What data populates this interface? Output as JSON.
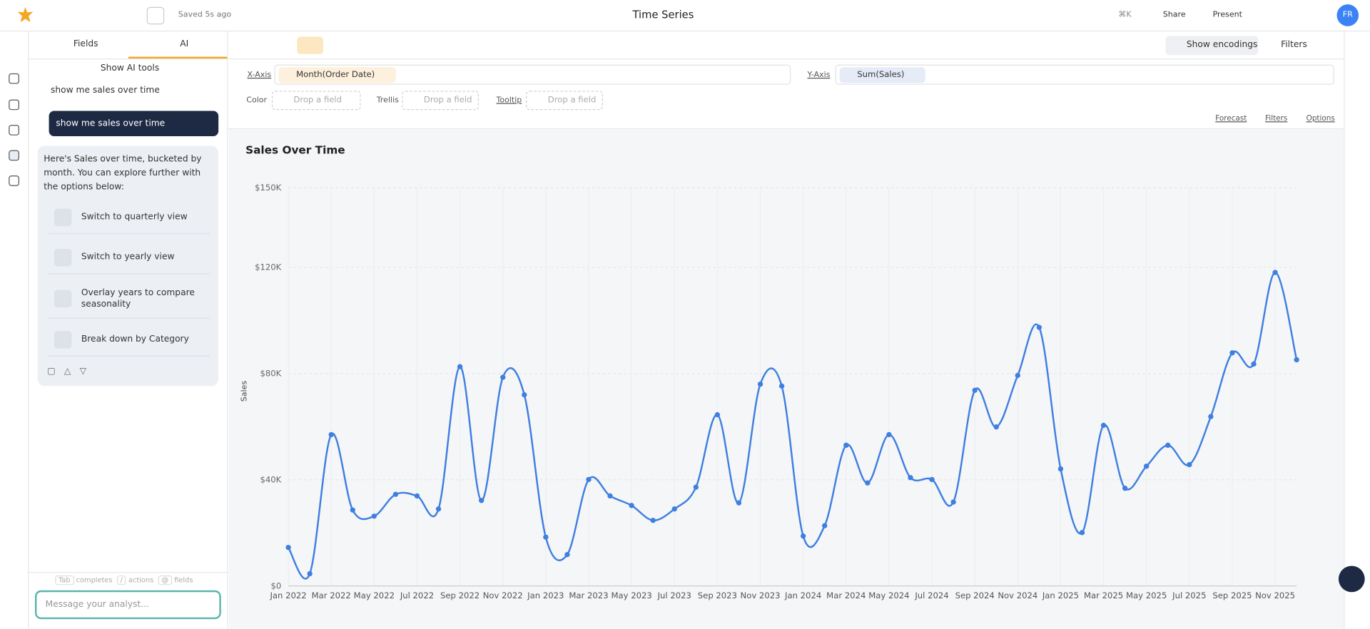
{
  "header": {
    "saved": "Saved 5s ago",
    "title": "Time Series",
    "shortcut": "⌘K",
    "share": "Share",
    "present": "Present",
    "avatar": "FR"
  },
  "sidebar": {
    "tabs": [
      "Fields",
      "AI"
    ],
    "ai_tools": "Show AI tools",
    "conversation": "show me sales over time"
  },
  "chat": {
    "user_message": "show me sales over time",
    "reply": "Here's Sales over time, bucketed by month. You can explore further with the options below:",
    "suggestions": [
      "Switch to quarterly view",
      "Switch to yearly view",
      "Overlay years to compare seasonality",
      "Break down by Category"
    ],
    "hints": [
      "Tab",
      "completes",
      "/",
      "actions",
      "@",
      "fields"
    ],
    "input_placeholder": "Message your analyst..."
  },
  "toolbar": {
    "show_encodings": "Show encodings",
    "filters": "Filters"
  },
  "encodings": {
    "x_axis": "X-Axis",
    "x_field": "Month(Order Date)",
    "y_axis": "Y-Axis",
    "y_field": "Sum(Sales)",
    "color": "Color",
    "trellis": "Trellis",
    "tooltip": "Tooltip",
    "drop": "Drop a field",
    "chart_options": [
      "Forecast",
      "Filters",
      "Options"
    ]
  },
  "chart_data": {
    "type": "line",
    "title": "Sales Over Time",
    "y_label": "Sales",
    "color": "#3f7fe0",
    "grid": true,
    "categories": [
      "Jan 2022",
      null,
      "Mar 2022",
      null,
      "May 2022",
      null,
      "Jul 2022",
      null,
      "Sep 2022",
      null,
      "Nov 2022",
      null,
      "Jan 2023",
      null,
      "Mar 2023",
      null,
      "May 2023",
      null,
      "Jul 2023",
      null,
      "Sep 2023",
      null,
      "Nov 2023",
      null,
      "Jan 2024",
      null,
      "Mar 2024",
      null,
      "May 2024",
      null,
      "Jul 2024",
      null,
      "Sep 2024",
      null,
      "Nov 2024",
      null,
      "Jan 2025",
      null,
      "Mar 2025",
      null,
      "May 2025",
      null,
      "Jul 2025",
      null,
      "Sep 2025",
      null,
      "Nov 2025",
      null
    ],
    "values": [
      14500,
      4600,
      57000,
      28600,
      26300,
      34500,
      33900,
      29000,
      82600,
      32200,
      78600,
      72000,
      18400,
      11800,
      40100,
      33900,
      30300,
      24700,
      29000,
      37200,
      64500,
      31300,
      76000,
      75300,
      18800,
      22700,
      53000,
      38800,
      57000,
      40800,
      40100,
      31600,
      73700,
      59900,
      79300,
      97400,
      44100,
      20100,
      60500,
      36800,
      45100,
      53000,
      45700,
      63800,
      87800,
      83600,
      118100,
      85200
    ],
    "ylim": [
      0,
      150000
    ],
    "yticks": [
      {
        "value": 0,
        "label": "$0"
      },
      {
        "value": 40000,
        "label": "$40K"
      },
      {
        "value": 80000,
        "label": "$80K"
      },
      {
        "value": 120000,
        "label": "$120K"
      },
      {
        "value": 150000,
        "label": "$150K"
      }
    ]
  }
}
